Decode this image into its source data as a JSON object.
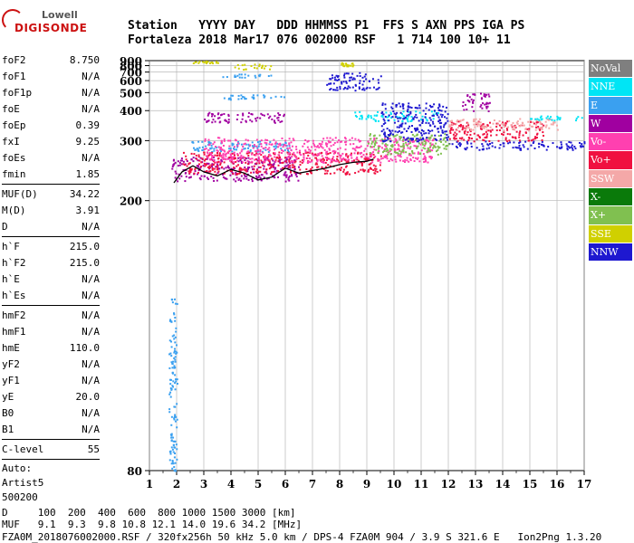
{
  "logo": {
    "top": "Lowell",
    "bottom": "DIGISONDE"
  },
  "header": {
    "line1": "Station   YYYY DAY   DDD HHMMSS P1  FFS S AXN PPS IGA PS",
    "line2": "Fortaleza 2018 Mar17 076 002000 RSF   1 714 100 10+ 11"
  },
  "params": [
    [
      {
        "k": "foF2",
        "v": "8.750"
      },
      {
        "k": "foF1",
        "v": "N/A"
      },
      {
        "k": "foF1p",
        "v": "N/A"
      },
      {
        "k": "foE",
        "v": "N/A"
      },
      {
        "k": "foEp",
        "v": "0.39"
      },
      {
        "k": "fxI",
        "v": "9.25"
      },
      {
        "k": "foEs",
        "v": "N/A"
      },
      {
        "k": "fmin",
        "v": "1.85"
      }
    ],
    [
      {
        "k": "MUF(D)",
        "v": "34.22"
      },
      {
        "k": "M(D)",
        "v": "3.91"
      },
      {
        "k": "D",
        "v": "N/A"
      }
    ],
    [
      {
        "k": "h`F",
        "v": "215.0"
      },
      {
        "k": "h`F2",
        "v": "215.0"
      },
      {
        "k": "h`E",
        "v": "N/A"
      },
      {
        "k": "h`Es",
        "v": "N/A"
      }
    ],
    [
      {
        "k": "hmF2",
        "v": "N/A"
      },
      {
        "k": "hmF1",
        "v": "N/A"
      },
      {
        "k": "hmE",
        "v": "110.0"
      },
      {
        "k": "yF2",
        "v": "N/A"
      },
      {
        "k": "yF1",
        "v": "N/A"
      },
      {
        "k": "yE",
        "v": "20.0"
      },
      {
        "k": "B0",
        "v": "N/A"
      },
      {
        "k": "B1",
        "v": "N/A"
      }
    ],
    [
      {
        "k": "C-level",
        "v": "55"
      }
    ]
  ],
  "auto": [
    "Auto:",
    "Artist5",
    "500200"
  ],
  "legend": [
    {
      "name": "NoVal",
      "color": "#7f7f7f"
    },
    {
      "name": "NNE",
      "color": "#00e5f5"
    },
    {
      "name": "E",
      "color": "#3aa0f0"
    },
    {
      "name": "W",
      "color": "#a000a0"
    },
    {
      "name": "Vo-",
      "color": "#ff40b0"
    },
    {
      "name": "Vo+",
      "color": "#f01040"
    },
    {
      "name": "SSW",
      "color": "#f4a8a8"
    },
    {
      "name": "X-",
      "color": "#0a7a0a"
    },
    {
      "name": "X+",
      "color": "#80c050"
    },
    {
      "name": "SSE",
      "color": "#d0d000"
    },
    {
      "name": "NNW",
      "color": "#1e18d0"
    }
  ],
  "footer": {
    "line1": "D     100  200  400  600  800 1000 1500 3000 [km]",
    "line2": "MUF   9.1  9.3  9.8 10.8 12.1 14.0 19.6 34.2 [MHz]",
    "line3": "FZA0M_2018076002000.RSF / 320fx256h 50 kHz 5.0 km / DPS-4 FZA0M 904 / 3.9 S 321.6 E   Ion2Png 1.3.20"
  },
  "chart_data": {
    "type": "scatter",
    "xlim": [
      1,
      17
    ],
    "ylim": [
      80,
      900
    ],
    "x_ticks": [
      1,
      2,
      3,
      4,
      5,
      6,
      7,
      8,
      9,
      10,
      11,
      12,
      13,
      14,
      15,
      16,
      17
    ],
    "y_ticks": [
      80,
      200,
      300,
      400,
      500,
      600,
      700,
      800,
      900
    ],
    "y_axis": "reciprocal",
    "grid": true,
    "legend_position": "right",
    "clusters": [
      {
        "cat": "E",
        "x": [
          1.7,
          2.0
        ],
        "y": [
          80,
          130
        ]
      },
      {
        "cat": "W",
        "x": [
          1.8,
          6.5
        ],
        "y": [
          225,
          265
        ]
      },
      {
        "cat": "E",
        "x": [
          2.5,
          6.2
        ],
        "y": [
          275,
          300
        ]
      },
      {
        "cat": "Vo+",
        "x": [
          2.2,
          9.5
        ],
        "y": [
          235,
          275
        ]
      },
      {
        "cat": "Vo-",
        "x": [
          3.0,
          11.5
        ],
        "y": [
          255,
          310
        ]
      },
      {
        "cat": "NNE",
        "x": [
          8.5,
          11.6
        ],
        "y": [
          360,
          400
        ]
      },
      {
        "cat": "E",
        "x": [
          3.5,
          6.0
        ],
        "y": [
          460,
          490
        ]
      },
      {
        "cat": "E",
        "x": [
          3.0,
          5.5
        ],
        "y": [
          640,
          680
        ]
      },
      {
        "cat": "W",
        "x": [
          3.0,
          6.0
        ],
        "y": [
          355,
          395
        ]
      },
      {
        "cat": "NNW",
        "x": [
          7.5,
          9.5
        ],
        "y": [
          520,
          700
        ]
      },
      {
        "cat": "SSE",
        "x": [
          4.0,
          5.5
        ],
        "y": [
          740,
          840
        ]
      },
      {
        "cat": "SSE",
        "x": [
          8.0,
          8.5
        ],
        "y": [
          800,
          870
        ]
      },
      {
        "cat": "SSE",
        "x": [
          2.5,
          3.5
        ],
        "y": [
          860,
          900
        ]
      },
      {
        "cat": "NNW",
        "x": [
          12.0,
          17.0
        ],
        "y": [
          280,
          300
        ]
      },
      {
        "cat": "Vo+",
        "x": [
          12.0,
          15.5
        ],
        "y": [
          300,
          360
        ]
      },
      {
        "cat": "SSW",
        "x": [
          12.0,
          16.0
        ],
        "y": [
          330,
          370
        ]
      },
      {
        "cat": "W",
        "x": [
          12.5,
          13.5
        ],
        "y": [
          400,
          500
        ]
      },
      {
        "cat": "NNE",
        "x": [
          15.0,
          17.0
        ],
        "y": [
          360,
          380
        ]
      },
      {
        "cat": "X+",
        "x": [
          9.0,
          12.0
        ],
        "y": [
          270,
          320
        ]
      },
      {
        "cat": "NNW",
        "x": [
          9.5,
          12.0
        ],
        "y": [
          300,
          440
        ]
      }
    ],
    "trace": {
      "x": [
        1.9,
        2.2,
        2.6,
        3.0,
        3.5,
        4.0,
        4.5,
        5.0,
        5.5,
        6.0,
        6.5,
        7.0,
        7.5,
        8.0,
        8.5,
        9.0,
        9.25
      ],
      "y": [
        222,
        238,
        248,
        238,
        232,
        242,
        236,
        226,
        230,
        244,
        236,
        240,
        244,
        250,
        254,
        256,
        260
      ]
    }
  }
}
